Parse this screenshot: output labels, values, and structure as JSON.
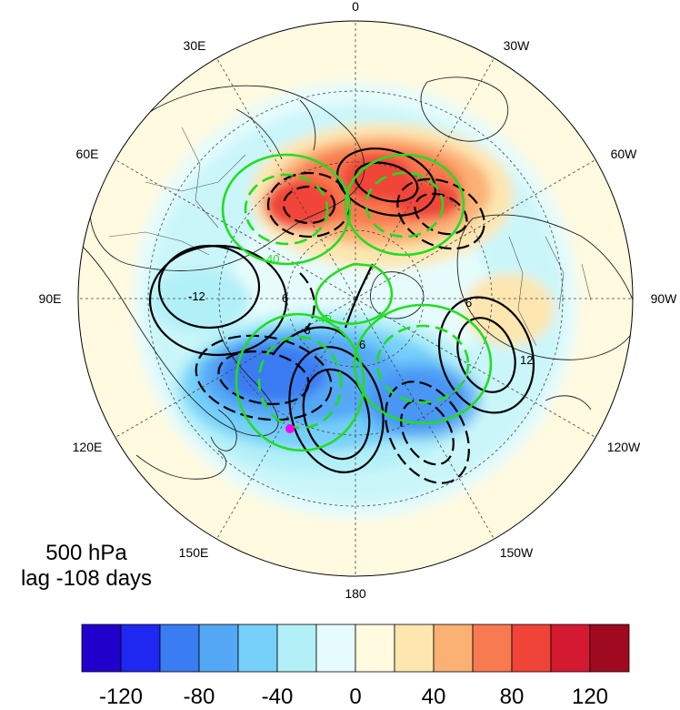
{
  "map": {
    "projection": "north polar stereographic",
    "lon_labels": [
      "0",
      "30W",
      "60W",
      "90W",
      "120W",
      "150W",
      "180",
      "150E",
      "120E",
      "90E",
      "60E",
      "30E"
    ],
    "marker_color": "#ff00ff",
    "colors": {
      "positive_contour": "#000000",
      "negative_contour": "#000000",
      "green_contour": "#22dd22"
    },
    "contour_labels": {
      "black": [
        "6",
        "-6",
        "12",
        "-12"
      ],
      "green": [
        "40",
        "-40"
      ]
    }
  },
  "panel_text": {
    "level": "500 hPa",
    "lag": "lag -108 days"
  },
  "colorbar": {
    "colors": [
      "#2200cc",
      "#1e28f0",
      "#3a7cf2",
      "#54a8f6",
      "#76d0fa",
      "#b2f0f8",
      "#e6fcfc",
      "#fffae0",
      "#fde6b0",
      "#fbb074",
      "#f87a50",
      "#f04438",
      "#d41a30",
      "#a00a20"
    ],
    "tick_labels": [
      "-120",
      "-80",
      "-40",
      "0",
      "40",
      "80",
      "120"
    ],
    "tick_values": [
      -120,
      -80,
      -40,
      0,
      40,
      80,
      120
    ],
    "range": [
      -140,
      140
    ]
  }
}
